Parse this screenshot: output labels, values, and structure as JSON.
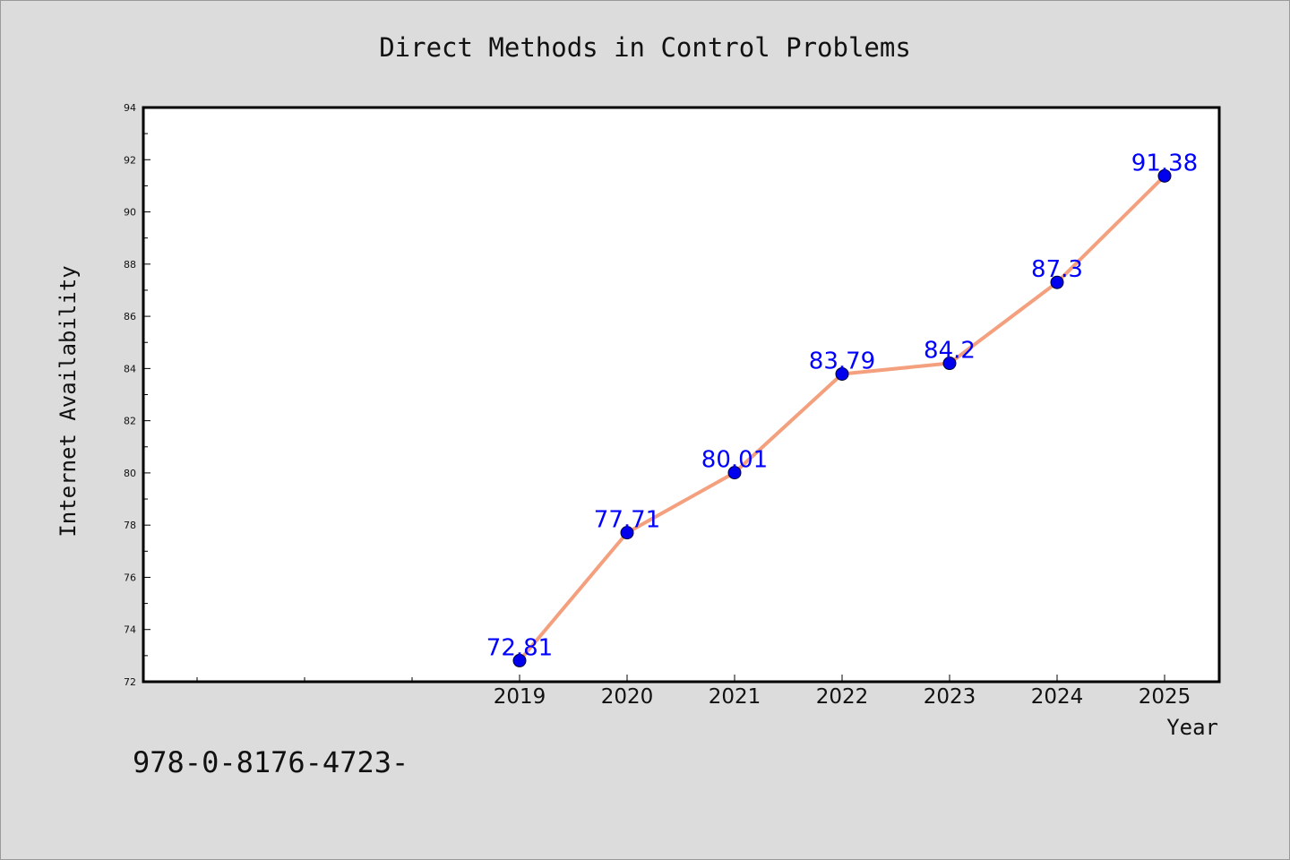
{
  "chart_data": {
    "type": "line",
    "title": "Direct Methods in Control Problems",
    "xlabel": "Year",
    "ylabel": "Internet Availability",
    "categories": [
      "2019",
      "2020",
      "2021",
      "2022",
      "2023",
      "2024",
      "2025"
    ],
    "series": [
      {
        "values": [
          72.81,
          77.71,
          80.01,
          83.79,
          84.2,
          87.3,
          91.38
        ],
        "data_labels": [
          "72.81",
          "77.71",
          "80.01",
          "83.79",
          "84.2",
          "87.3",
          "91.38"
        ],
        "line_color": "#f4a07e",
        "marker_color": "#0000ee"
      }
    ],
    "ylim": [
      72,
      94
    ],
    "y_ticks": [
      "72",
      "74",
      "76",
      "78",
      "80",
      "82",
      "84",
      "86",
      "88",
      "90",
      "92",
      "94"
    ],
    "label_color": "#0000ff",
    "grid": false
  },
  "footnote": "978-0-8176-4723-"
}
